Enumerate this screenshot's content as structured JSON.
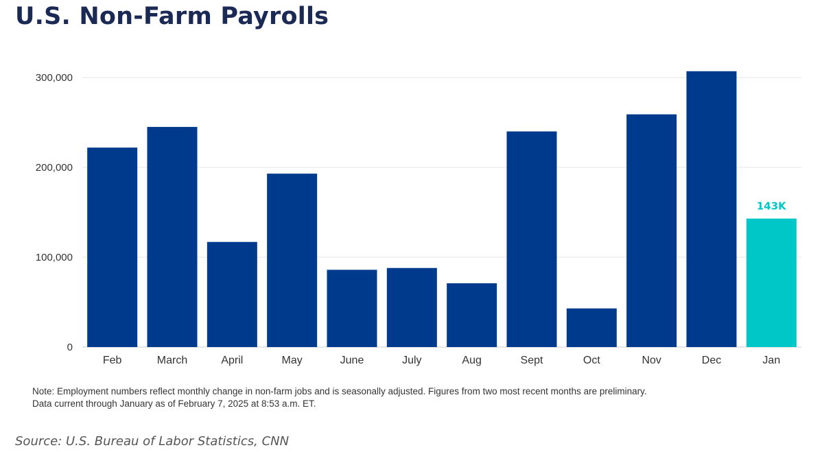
{
  "title": "U.S. Non-Farm Payrolls",
  "colors": {
    "bar": "#003a8c",
    "highlight": "#00c7c7",
    "gridline": "#e6e6e6",
    "title": "#1b2a55"
  },
  "chart_data": {
    "type": "bar",
    "title": "U.S. Non-Farm Payrolls",
    "xlabel": "",
    "ylabel": "",
    "ylim": [
      0,
      300000
    ],
    "yticks": [
      0,
      100000,
      200000,
      300000
    ],
    "ytick_labels": [
      "0",
      "100,000",
      "200,000",
      "300,000"
    ],
    "categories": [
      "Feb",
      "March",
      "April",
      "May",
      "June",
      "July",
      "Aug",
      "Sept",
      "Oct",
      "Nov",
      "Dec",
      "Jan"
    ],
    "values": [
      222000,
      245000,
      117000,
      193000,
      86000,
      88000,
      71000,
      240000,
      43000,
      259000,
      307000,
      143000
    ],
    "highlight_index": 11,
    "annotations": [
      {
        "category": "Jan",
        "text": "143K"
      }
    ],
    "grid": true
  },
  "note": {
    "line1": "Note: Employment numbers reflect monthly change in non-farm jobs and is seasonally adjusted. Figures from two most recent months are preliminary.",
    "line2": "Data current through January as of February 7, 2025 at 8:53 a.m. ET."
  },
  "source": "Source: U.S. Bureau of Labor Statistics, CNN"
}
